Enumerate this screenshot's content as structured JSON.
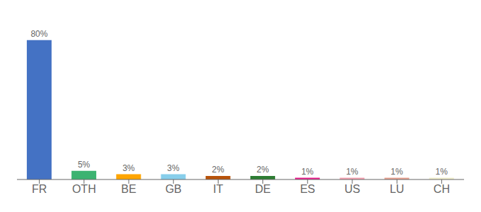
{
  "chart_data": {
    "type": "bar",
    "categories": [
      "FR",
      "OTH",
      "BE",
      "GB",
      "IT",
      "DE",
      "ES",
      "US",
      "LU",
      "CH"
    ],
    "values": [
      80,
      5,
      3,
      3,
      2,
      2,
      1,
      1,
      1,
      1
    ],
    "value_labels": [
      "80%",
      "5%",
      "3%",
      "3%",
      "2%",
      "2%",
      "1%",
      "1%",
      "1%",
      "1%"
    ],
    "colors": [
      "#4472c4",
      "#3cb371",
      "#ffa500",
      "#87ceeb",
      "#b8530a",
      "#2d7d32",
      "#e91e8c",
      "#f4a0b0",
      "#e8a090",
      "#f0eecc"
    ],
    "ylim": [
      0,
      90
    ],
    "data_labels": true,
    "tick_labels": "x",
    "grid": false
  }
}
